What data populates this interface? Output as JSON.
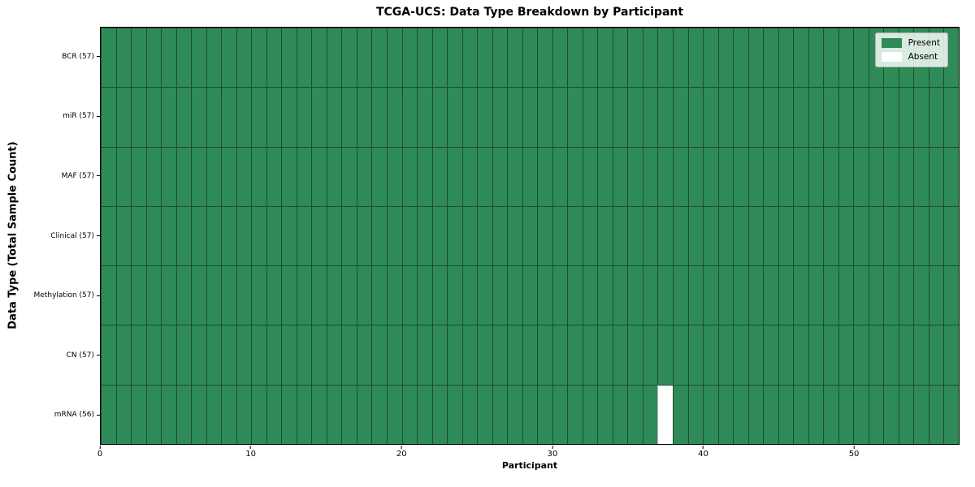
{
  "chart_data": {
    "type": "heatmap",
    "title": "TCGA-UCS: Data Type Breakdown by Participant",
    "xlabel": "Participant",
    "ylabel": "Data Type (Total Sample Count)",
    "n_participants": 57,
    "xlim": [
      0,
      57
    ],
    "x_ticks": [
      0,
      10,
      20,
      30,
      40,
      50
    ],
    "grid": true,
    "legend_position": "upper right",
    "rows": [
      {
        "data_type": "BCR",
        "label": "BCR (57)",
        "total": 57,
        "absent_participants": []
      },
      {
        "data_type": "miR",
        "label": "miR (57)",
        "total": 57,
        "absent_participants": []
      },
      {
        "data_type": "MAF",
        "label": "MAF (57)",
        "total": 57,
        "absent_participants": []
      },
      {
        "data_type": "Clinical",
        "label": "Clinical (57)",
        "total": 57,
        "absent_participants": []
      },
      {
        "data_type": "Methylation",
        "label": "Methylation (57)",
        "total": 57,
        "absent_participants": []
      },
      {
        "data_type": "CN",
        "label": "CN (57)",
        "total": 57,
        "absent_participants": []
      },
      {
        "data_type": "mRNA",
        "label": "mRNA (56)",
        "total": 56,
        "absent_participants": [
          37
        ]
      }
    ],
    "legend": [
      {
        "label": "Present",
        "color": "#2E8B57"
      },
      {
        "label": "Absent",
        "color": "#ffffff"
      }
    ],
    "colors": {
      "present": "#2E8B57",
      "absent": "#ffffff",
      "cell_edge": "#1f4a31",
      "spine": "#000000"
    }
  }
}
